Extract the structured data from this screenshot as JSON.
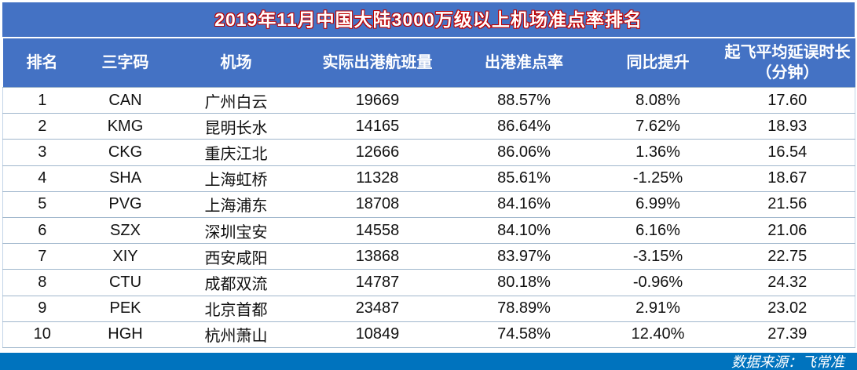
{
  "chart_data": {
    "type": "table",
    "title": "2019年11月中国大陆3000万级以上机场准点率排名",
    "columns": [
      "排名",
      "三字码",
      "机场",
      "实际出港航班量",
      "出港准点率",
      "同比提升",
      "起飞平均延误时长\n（分钟）"
    ],
    "fields": [
      "rank",
      "code",
      "airport",
      "flights",
      "ontime_rate",
      "yoy_change",
      "avg_delay_min"
    ],
    "rows": [
      {
        "rank": "1",
        "code": "CAN",
        "airport": "广州白云",
        "flights": "19669",
        "ontime_rate": "88.57%",
        "yoy_change": "8.08%",
        "avg_delay_min": "17.60"
      },
      {
        "rank": "2",
        "code": "KMG",
        "airport": "昆明长水",
        "flights": "14165",
        "ontime_rate": "86.64%",
        "yoy_change": "7.62%",
        "avg_delay_min": "18.93"
      },
      {
        "rank": "3",
        "code": "CKG",
        "airport": "重庆江北",
        "flights": "12666",
        "ontime_rate": "86.06%",
        "yoy_change": "1.36%",
        "avg_delay_min": "16.54"
      },
      {
        "rank": "4",
        "code": "SHA",
        "airport": "上海虹桥",
        "flights": "11328",
        "ontime_rate": "85.61%",
        "yoy_change": "-1.25%",
        "avg_delay_min": "18.67"
      },
      {
        "rank": "5",
        "code": "PVG",
        "airport": "上海浦东",
        "flights": "18708",
        "ontime_rate": "84.16%",
        "yoy_change": "6.99%",
        "avg_delay_min": "21.56"
      },
      {
        "rank": "6",
        "code": "SZX",
        "airport": "深圳宝安",
        "flights": "14558",
        "ontime_rate": "84.10%",
        "yoy_change": "6.16%",
        "avg_delay_min": "21.06"
      },
      {
        "rank": "7",
        "code": "XIY",
        "airport": "西安咸阳",
        "flights": "13868",
        "ontime_rate": "83.97%",
        "yoy_change": "-3.15%",
        "avg_delay_min": "22.75"
      },
      {
        "rank": "8",
        "code": "CTU",
        "airport": "成都双流",
        "flights": "14787",
        "ontime_rate": "80.18%",
        "yoy_change": "-0.96%",
        "avg_delay_min": "24.32"
      },
      {
        "rank": "9",
        "code": "PEK",
        "airport": "北京首都",
        "flights": "23487",
        "ontime_rate": "78.89%",
        "yoy_change": "2.91%",
        "avg_delay_min": "23.02"
      },
      {
        "rank": "10",
        "code": "HGH",
        "airport": "杭州萧山",
        "flights": "10849",
        "ontime_rate": "74.58%",
        "yoy_change": "12.40%",
        "avg_delay_min": "27.39"
      }
    ]
  },
  "footer": {
    "source": "数据来源：飞常准"
  },
  "colors": {
    "banner_blue": "#4472C4",
    "footer_blue": "#0073BE",
    "title_outline_red": "#C00000",
    "row_line": "#9FB6CC",
    "text": "#111111",
    "banner_text": "#FFFFFF"
  }
}
